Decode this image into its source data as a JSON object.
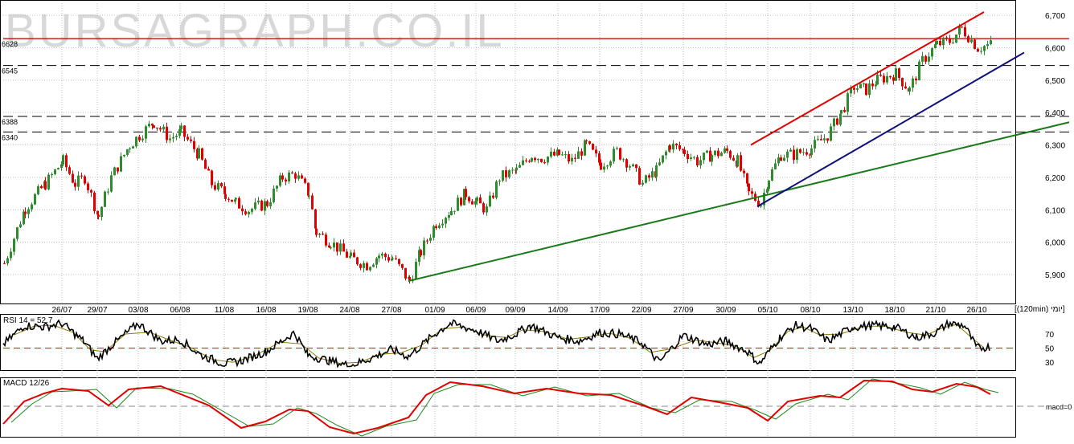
{
  "watermark": "BURSAGRAPH.CO.IL",
  "period_label": "[(120min) יומי]",
  "colors": {
    "up": "#2e8b2e",
    "down": "#e00000",
    "rsi_line": "#000000",
    "ma_line": "#8b7d00",
    "macd_line": "#e00000",
    "signal_line": "#1a8a1a",
    "resistance": "#e00000",
    "support_long": "#1a7a1a",
    "support_short": "#10107a",
    "grid": "#bcbcbc",
    "dashed_level": "#000000",
    "watermark": "#d8d8d8"
  },
  "chart_data": [
    {
      "type": "candlestick",
      "title": "",
      "ylim": [
        5840,
        6720
      ],
      "y_ticks": [
        "6,700",
        "6,600",
        "6,500",
        "6,400",
        "6,300",
        "6,200",
        "6,100",
        "6,000",
        "5,900"
      ],
      "y_tick_values": [
        6700,
        6600,
        6500,
        6400,
        6300,
        6200,
        6100,
        6000,
        5900
      ],
      "x_ticks": [
        "26/07",
        "29/07",
        "03/08",
        "06/08",
        "11/08",
        "16/08",
        "19/08",
        "24/08",
        "27/08",
        "01/09",
        "06/09",
        "09/09",
        "14/09",
        "17/09",
        "22/09",
        "27/09",
        "30/09",
        "05/10",
        "08/10",
        "13/10",
        "18/10",
        "21/10",
        "26/10"
      ],
      "close_path": [
        [
          "23/07",
          5935
        ],
        [
          "24/07",
          6105
        ],
        [
          "25/07",
          6180
        ],
        [
          "26/07",
          6250
        ],
        [
          "27/07",
          6180
        ],
        [
          "28/07",
          6200
        ],
        [
          "29/07",
          6080
        ],
        [
          "30/07",
          6200
        ],
        [
          "02/08",
          6300
        ],
        [
          "03/08",
          6330
        ],
        [
          "04/08",
          6370
        ],
        [
          "05/08",
          6320
        ],
        [
          "06/08",
          6340
        ],
        [
          "09/08",
          6270
        ],
        [
          "10/08",
          6180
        ],
        [
          "11/08",
          6150
        ],
        [
          "12/08",
          6120
        ],
        [
          "13/08",
          6100
        ],
        [
          "16/08",
          6120
        ],
        [
          "17/08",
          6200
        ],
        [
          "18/08",
          6210
        ],
        [
          "19/08",
          6150
        ],
        [
          "20/08",
          6030
        ],
        [
          "23/08",
          6000
        ],
        [
          "24/08",
          5950
        ],
        [
          "25/08",
          5930
        ],
        [
          "26/08",
          5960
        ],
        [
          "27/08",
          5950
        ],
        [
          "30/08",
          5880
        ],
        [
          "31/08",
          5970
        ],
        [
          "01/09",
          6060
        ],
        [
          "02/09",
          6100
        ],
        [
          "03/09",
          6150
        ],
        [
          "06/09",
          6120
        ],
        [
          "07/09",
          6100
        ],
        [
          "08/09",
          6200
        ],
        [
          "09/09",
          6220
        ],
        [
          "10/09",
          6270
        ],
        [
          "13/09",
          6260
        ],
        [
          "14/09",
          6270
        ],
        [
          "15/09",
          6250
        ],
        [
          "16/09",
          6300
        ],
        [
          "17/09",
          6240
        ],
        [
          "20/09",
          6280
        ],
        [
          "21/09",
          6240
        ],
        [
          "22/09",
          6180
        ],
        [
          "23/09",
          6220
        ],
        [
          "24/09",
          6300
        ],
        [
          "27/09",
          6280
        ],
        [
          "28/09",
          6250
        ],
        [
          "29/09",
          6270
        ],
        [
          "30/09",
          6280
        ],
        [
          "01/10",
          6250
        ],
        [
          "02/10",
          6150
        ],
        [
          "04/10",
          6120
        ],
        [
          "05/10",
          6200
        ],
        [
          "06/10",
          6270
        ],
        [
          "07/10",
          6270
        ],
        [
          "08/10",
          6290
        ],
        [
          "11/10",
          6330
        ],
        [
          "12/10",
          6400
        ],
        [
          "13/10",
          6480
        ],
        [
          "14/10",
          6470
        ],
        [
          "15/10",
          6500
        ],
        [
          "18/10",
          6520
        ],
        [
          "19/10",
          6470
        ],
        [
          "20/10",
          6560
        ],
        [
          "21/10",
          6610
        ],
        [
          "22/10",
          6620
        ],
        [
          "25/10",
          6660
        ],
        [
          "26/10",
          6600
        ],
        [
          "27/10",
          6610
        ]
      ],
      "levels": [
        {
          "label": "6628",
          "value": 6628,
          "style": "solid",
          "color": "#e00000"
        },
        {
          "label": "6545",
          "value": 6545,
          "style": "dashed"
        },
        {
          "label": "6388",
          "value": 6388,
          "style": "dashed"
        },
        {
          "label": "6340",
          "value": 6340,
          "style": "dashed"
        }
      ],
      "trendlines": [
        {
          "name": "support_long",
          "points": [
            [
              "30/08",
              5880
            ],
            [
              "04/10",
              6110
            ],
            [
              "end",
              6370
            ]
          ]
        },
        {
          "name": "support_short",
          "points": [
            [
              "04/10",
              6110
            ],
            [
              "end+",
              6585
            ]
          ]
        },
        {
          "name": "channel_top",
          "points": [
            [
              "04/10",
              6300
            ],
            [
              "25/10",
              6710
            ]
          ]
        }
      ]
    },
    {
      "type": "line",
      "title": "RSI 14 = 52.7",
      "ylim": [
        20,
        95
      ],
      "y_ticks": [
        "70",
        "50",
        "30"
      ],
      "y_tick_values": [
        70,
        50,
        30
      ],
      "reference_line": 50,
      "series": [
        {
          "name": "RSI 14"
        },
        {
          "name": ""
        }
      ]
    },
    {
      "type": "line",
      "title": "MACD 12/26",
      "reference_label": "macd=0",
      "series": [
        {
          "name": "MACD 12/26"
        },
        {
          "name": ""
        }
      ]
    }
  ]
}
